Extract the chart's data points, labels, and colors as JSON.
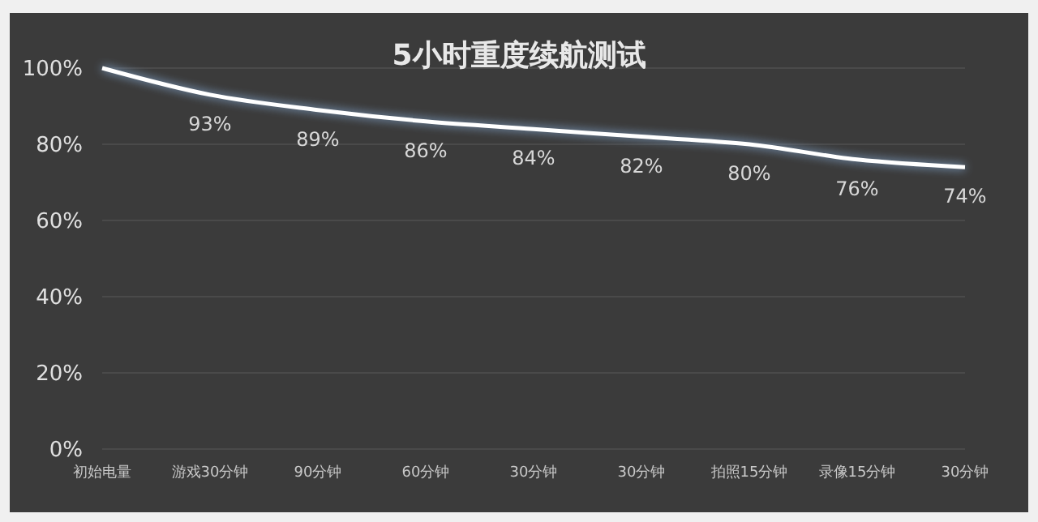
{
  "chart_data": {
    "type": "line",
    "title": "5小时重度续航测试",
    "categories": [
      "初始电量",
      "游戏30分钟",
      "90分钟",
      "60分钟",
      "30分钟",
      "30分钟",
      "拍照15分钟",
      "录像15分钟",
      "30分钟"
    ],
    "series": [
      {
        "color": "#ffffff",
        "values": [
          100,
          93,
          89,
          86,
          84,
          82,
          80,
          76,
          74
        ],
        "value_labels": [
          null,
          "93%",
          "89%",
          "86%",
          "84%",
          "82%",
          "80%",
          "76%",
          "74%"
        ]
      }
    ],
    "ylim": [
      0,
      100
    ],
    "yticks": [
      {
        "value": 0,
        "label": "0%"
      },
      {
        "value": 20,
        "label": "20%"
      },
      {
        "value": 40,
        "label": "40%"
      },
      {
        "value": 60,
        "label": "60%"
      },
      {
        "value": 80,
        "label": "80%"
      },
      {
        "value": 100,
        "label": "100%"
      }
    ],
    "grid": "y",
    "marker": "none",
    "line_style": "solid"
  }
}
